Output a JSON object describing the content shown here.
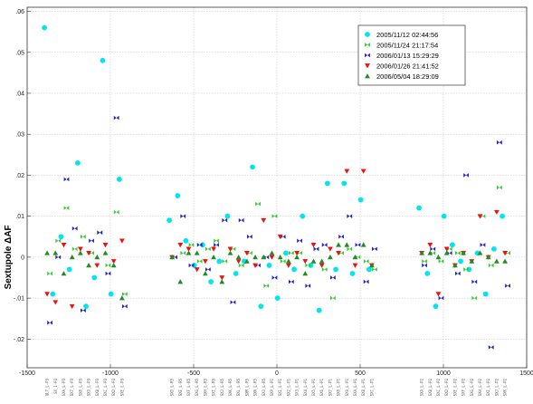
{
  "chart_data": {
    "type": "scatter",
    "title": "",
    "xlabel": "",
    "ylabel": "Sextupole ΔAF",
    "xlim": [
      -1500,
      1500
    ],
    "ylim": [
      -0.027,
      0.061
    ],
    "xticks": [
      -1500,
      -1000,
      -500,
      0,
      500,
      1000,
      1500
    ],
    "xtick_labels": [
      "-1500",
      "-1000",
      "-500",
      "0",
      "500",
      "1000",
      "1500"
    ],
    "yticks": [
      -0.02,
      -0.01,
      0,
      0.01,
      0.02,
      0.03,
      0.04,
      0.05,
      0.06
    ],
    "ytick_labels": [
      "-.02",
      "-.01",
      "0",
      ".01",
      ".02",
      ".03",
      ".04",
      ".05",
      ".06"
    ],
    "grid": true,
    "legend_position": "top-right",
    "x": [
      -1380,
      -1330,
      -1280,
      -1230,
      -1180,
      -1130,
      -1080,
      -1030,
      -980,
      -930,
      -630,
      -580,
      -530,
      -480,
      -430,
      -380,
      -330,
      -280,
      -230,
      -180,
      -130,
      -80,
      -30,
      20,
      70,
      120,
      170,
      220,
      270,
      320,
      370,
      420,
      470,
      520,
      570,
      870,
      920,
      970,
      1020,
      1070,
      1120,
      1170,
      1220,
      1270,
      1320,
      1370
    ],
    "series": [
      {
        "name": "2005/11/12 02:44:56",
        "color": "#00e5ee",
        "marker": "circle",
        "values": [
          0.056,
          -0.009,
          0.005,
          -0.003,
          0.023,
          -0.012,
          -0.005,
          0.048,
          -0.009,
          0.019,
          0.009,
          0.015,
          0.004,
          -0.002,
          0.003,
          -0.006,
          -0.001,
          0.01,
          -0.004,
          -0.001,
          0.022,
          -0.012,
          -0.002,
          -0.01,
          0.001,
          -0.003,
          0.01,
          -0.002,
          -0.013,
          0.018,
          -0.003,
          0.018,
          -0.004,
          0.014,
          -0.003,
          0.012,
          -0.004,
          -0.012,
          0.01,
          0.003,
          -0.001,
          -0.003,
          0.001,
          -0.009,
          0.002,
          0.01
        ]
      },
      {
        "name": "2005/11/24 21:17:54",
        "color": "#33cc33",
        "marker": "bowtie",
        "values": [
          -0.004,
          0.004,
          0.012,
          0.002,
          0.005,
          0.001,
          0.006,
          -0.002,
          0.011,
          -0.009,
          0.0,
          0.001,
          0.003,
          -0.001,
          0.002,
          0.004,
          -0.001,
          0.002,
          -0.002,
          0.001,
          0.013,
          -0.007,
          0.01,
          -0.001,
          0.001,
          0.001,
          -0.002,
          0.002,
          -0.003,
          -0.01,
          0.001,
          0.002,
          0.0,
          -0.001,
          -0.003,
          -0.001,
          0.001,
          -0.001,
          0.002,
          0.001,
          -0.003,
          -0.01,
          0.01,
          -0.002,
          0.017,
          0.001
        ]
      },
      {
        "name": "2006/01/13 15:29:29",
        "color": "#2222cc",
        "marker": "bowtie",
        "values": [
          -0.016,
          0.0,
          0.019,
          0.007,
          -0.013,
          0.004,
          0.006,
          -0.004,
          0.034,
          -0.012,
          0.0,
          0.01,
          -0.002,
          0.003,
          -0.003,
          0.003,
          0.009,
          -0.011,
          0.009,
          0.005,
          -0.002,
          0.0,
          -0.005,
          0.005,
          -0.006,
          0.004,
          -0.007,
          0.002,
          0.003,
          -0.005,
          0.005,
          0.01,
          0.003,
          -0.006,
          0.002,
          -0.002,
          0.002,
          -0.01,
          0.001,
          -0.004,
          0.02,
          -0.006,
          0.003,
          -0.022,
          0.028,
          -0.007
        ]
      },
      {
        "name": "2006/01/26 21:41:52",
        "color": "#ee1111",
        "marker": "triangle-down",
        "values": [
          -0.009,
          -0.011,
          0.003,
          -0.012,
          0.002,
          0.001,
          -0.002,
          0.003,
          -0.001,
          0.004,
          0.0,
          0.003,
          0.002,
          -0.003,
          -0.001,
          0.002,
          -0.005,
          0.002,
          -0.001,
          0.001,
          -0.002,
          0.009,
          0.0,
          0.005,
          -0.002,
          0.001,
          -0.001,
          0.003,
          -0.002,
          0.002,
          0.001,
          0.021,
          -0.002,
          0.021,
          -0.002,
          0.001,
          0.003,
          -0.009,
          0.002,
          -0.002,
          0.001,
          -0.001,
          0.01,
          0.0,
          0.011,
          0.001
        ]
      },
      {
        "name": "2006/05/04 18:29:09",
        "color": "#228b22",
        "marker": "triangle-up",
        "values": [
          0.001,
          0.001,
          -0.004,
          0.0,
          0.001,
          -0.002,
          0.0,
          0.001,
          -0.002,
          -0.01,
          0.0,
          -0.006,
          0.001,
          0.001,
          -0.004,
          0.0,
          -0.006,
          0.001,
          0.0,
          -0.001,
          0.0,
          0.0,
          0.001,
          0.0,
          -0.001,
          0.0,
          -0.004,
          -0.001,
          -0.001,
          0.0,
          0.003,
          0.003,
          0.0,
          0.003,
          -0.002,
          0.001,
          0.001,
          0.0,
          0.001,
          -0.002,
          0.001,
          -0.001,
          0.001,
          0.0,
          -0.001,
          -0.001
        ]
      }
    ],
    "category_labels": [
      "QL7_L-P3",
      "SX_1-P3",
      "SXA_L-P3",
      "SX7_L-P3",
      "SX8_L-P3",
      "SX9_L-P3",
      "SXB_L-P3",
      "SXC_L-P3",
      "SXD_L-P3",
      "SXE_L-P3",
      "SXD_L-R5",
      "SXE_L-R5",
      "SXF_L-R5",
      "SXG_L-R5",
      "SXH_L-R5",
      "SXI_L-R5",
      "SXJ_L-R5",
      "SXK_L-R5",
      "SXL_L-R5",
      "SXM_L-R5",
      "SXN_L-R5",
      "SXO_L-R5",
      "SXP_L-P1",
      "SX1_L-P1",
      "SX2_L-P1",
      "SX3_L-P1",
      "SX4_L-P1",
      "SX5_L-P1",
      "SX6_L-P1",
      "SX7_L-P1",
      "SX8_L-P1",
      "SX9_L-P1",
      "SXA_L-P1",
      "SXB_L-P1",
      "SXC_L-P1",
      "SXA_L-P2",
      "SXB_L-P2",
      "SXC_L-P2",
      "SXD_L-P2",
      "SXE_L-P2",
      "SXF_L-P2",
      "SXG_L-P2",
      "SXH_L-P2",
      "SXI_L-P2",
      "SXJ_L-P2",
      "SXK_L-P2"
    ]
  }
}
